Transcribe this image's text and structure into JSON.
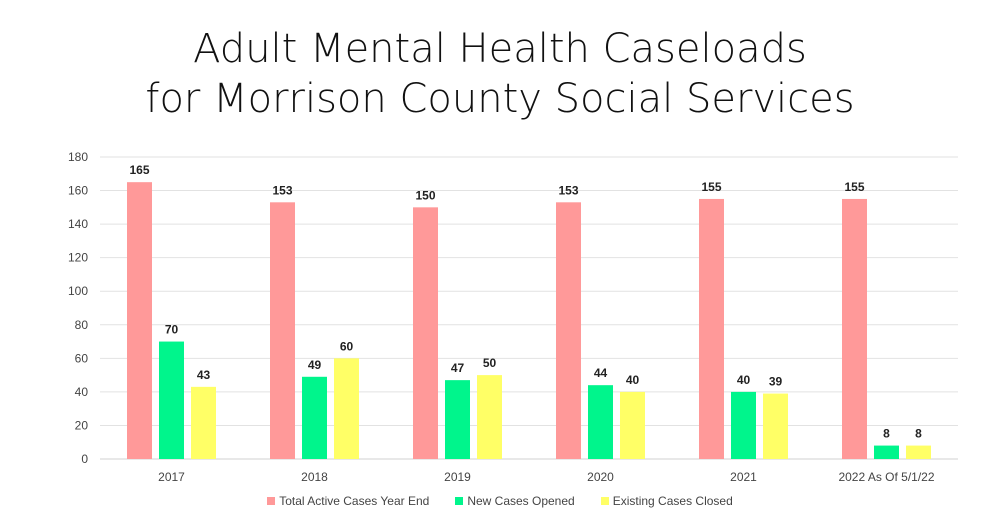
{
  "chart_data": {
    "type": "bar",
    "title": "Adult Mental Health Caseloads for Morrison County Social Services",
    "title_lines": [
      "Adult Mental Health Caseloads",
      "for Morrison County Social Services"
    ],
    "xlabel": "",
    "ylabel": "",
    "ylim": [
      0,
      180
    ],
    "yticks": [
      0,
      20,
      40,
      60,
      80,
      100,
      120,
      140,
      160,
      180
    ],
    "grid": true,
    "legend_position": "bottom",
    "categories": [
      "2017",
      "2018",
      "2019",
      "2020",
      "2021",
      "2022 As Of 5/1/22"
    ],
    "series": [
      {
        "name": "Total Active Cases Year End",
        "color": "#ff9999",
        "values": [
          165,
          153,
          150,
          153,
          155,
          155
        ]
      },
      {
        "name": "New Cases Opened",
        "color": "#00f58c",
        "values": [
          70,
          49,
          47,
          44,
          40,
          8
        ]
      },
      {
        "name": "Existing Cases Closed",
        "color": "#ffff66",
        "values": [
          43,
          60,
          50,
          40,
          39,
          8
        ]
      }
    ]
  }
}
